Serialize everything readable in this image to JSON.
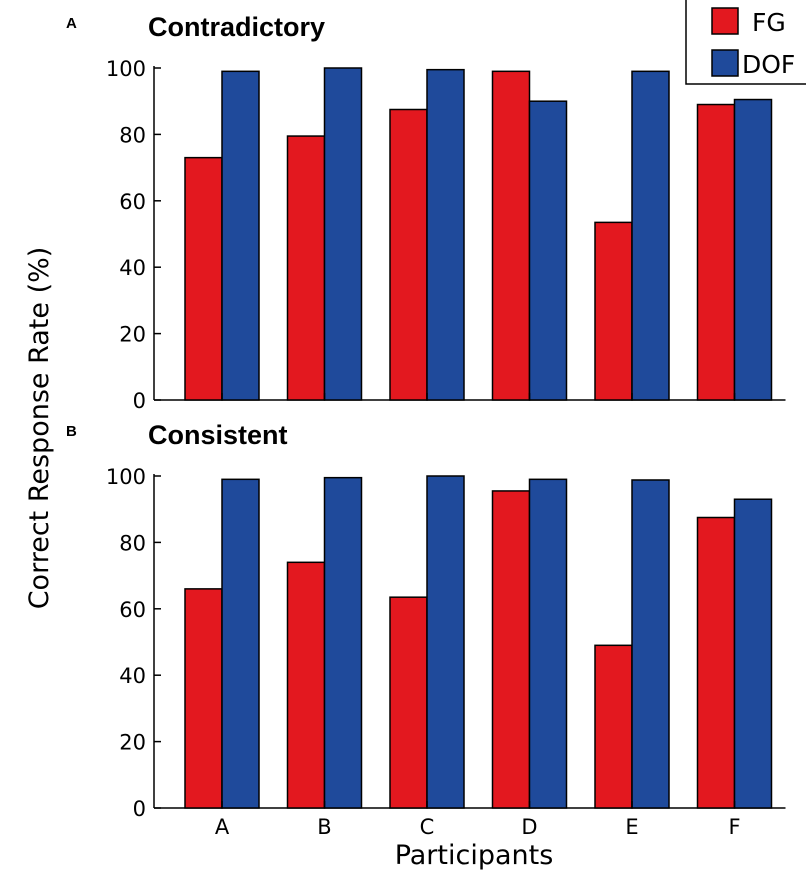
{
  "chart_data": [
    {
      "type": "bar",
      "panel_label": "A",
      "title": "Contradictory",
      "categories": [
        "A",
        "B",
        "C",
        "D",
        "E",
        "F"
      ],
      "series": [
        {
          "name": "FG",
          "color": "#e3181f",
          "values": [
            73,
            79.5,
            87.5,
            99,
            53.5,
            89
          ]
        },
        {
          "name": "DOF",
          "color": "#1f4a9b",
          "values": [
            99,
            100,
            99.5,
            90,
            99,
            90.5
          ]
        }
      ],
      "ylim": [
        0,
        100
      ],
      "yticks": [
        "0",
        "20",
        "40",
        "60",
        "80",
        "100"
      ],
      "show_x_tick_labels": false
    },
    {
      "type": "bar",
      "panel_label": "B",
      "title": "Consistent",
      "categories": [
        "A",
        "B",
        "C",
        "D",
        "E",
        "F"
      ],
      "series": [
        {
          "name": "FG",
          "color": "#e3181f",
          "values": [
            66,
            74,
            63.5,
            95.5,
            49,
            87.5
          ]
        },
        {
          "name": "DOF",
          "color": "#1f4a9b",
          "values": [
            99,
            99.5,
            100,
            99,
            98.8,
            93
          ]
        }
      ],
      "ylim": [
        0,
        100
      ],
      "yticks": [
        "0",
        "20",
        "40",
        "60",
        "80",
        "100"
      ],
      "show_x_tick_labels": true
    }
  ],
  "ylabel": "Correct Response Rate (%)",
  "xlabel": "Participants",
  "legend": {
    "placement": "top-right",
    "entries": [
      {
        "label": "FG",
        "color": "#e3181f"
      },
      {
        "label": "DOF",
        "color": "#1f4a9b"
      }
    ]
  }
}
